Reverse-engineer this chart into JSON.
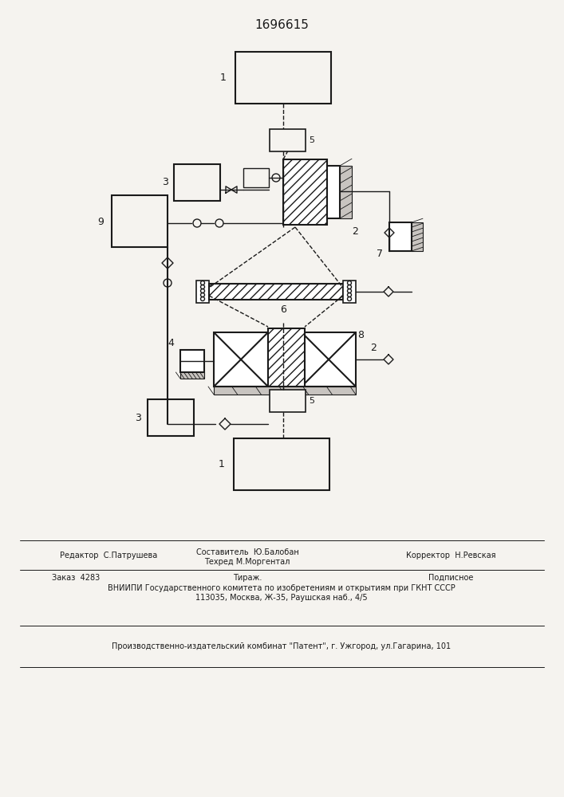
{
  "title": "1696615",
  "bg_color": "#f5f3ef",
  "line_color": "#1a1a1a",
  "footer": {
    "editor": "Редактор  С.Патрушева",
    "compiler_line1": "Составитель  Ю.Балобан",
    "compiler_line2": "Техред М.Моргентал",
    "corrector": "Корректор  Н.Ревская",
    "order": "Заказ  4283",
    "tirazh": "Тираж.",
    "podpisnoe": "Подписное",
    "vniipи": "ВНИИПИ Государственного комитета по изобретениям и открытиям при ГКНТ СССР",
    "address": "113035, Москва, Ж-35, Раушская наб., 4/5",
    "kombinat": "Производственно-издательский комбинат \"Патент\", г. Ужгород, ул.Гагарина, 101"
  }
}
